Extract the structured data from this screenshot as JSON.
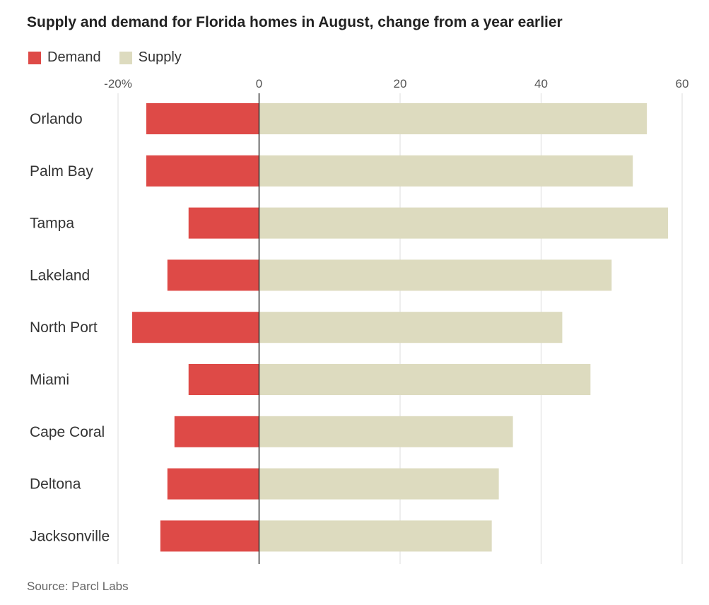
{
  "colors": {
    "demand": "#de4a47",
    "supply": "#dddbbf",
    "grid": "#e2e2e2",
    "axis": "#333333"
  },
  "source": "Source: Parcl Labs",
  "chart_data": {
    "type": "bar",
    "orientation": "horizontal",
    "title": "Supply and demand for Florida homes in August, change from a year earlier",
    "categories": [
      "Orlando",
      "Palm Bay",
      "Tampa",
      "Lakeland",
      "North Port",
      "Miami",
      "Cape Coral",
      "Deltona",
      "Jacksonville"
    ],
    "series": [
      {
        "name": "Demand",
        "values": [
          -16,
          -16,
          -10,
          -13,
          -18,
          -10,
          -12,
          -13,
          -14
        ]
      },
      {
        "name": "Supply",
        "values": [
          55,
          53,
          58,
          50,
          43,
          47,
          36,
          34,
          33
        ]
      }
    ],
    "xlim": [
      -20,
      60
    ],
    "ticks": [
      -20,
      0,
      20,
      40,
      60
    ],
    "tick_labels": [
      "-20%",
      "0",
      "20",
      "40",
      "60"
    ],
    "grid": true,
    "legend": "top-left"
  }
}
